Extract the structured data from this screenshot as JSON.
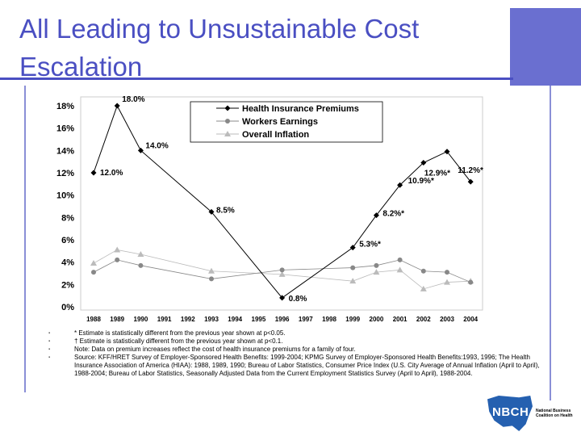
{
  "slide": {
    "title": "All Leading to Unsustainable Cost Escalation"
  },
  "chart_data": {
    "type": "line",
    "title": "",
    "xlabel": "",
    "ylabel": "",
    "categories": [
      "1988",
      "1989",
      "1990",
      "1991",
      "1992",
      "1993",
      "1994",
      "1995",
      "1996",
      "1997",
      "1998",
      "1999",
      "2000",
      "2001",
      "2002",
      "2003",
      "2004"
    ],
    "ylim": [
      0,
      18
    ],
    "y_ticks": [
      "0%",
      "2%",
      "4%",
      "6%",
      "8%",
      "10%",
      "12%",
      "14%",
      "16%",
      "18%"
    ],
    "legend_position": "top-right",
    "series": [
      {
        "name": "Health Insurance Premiums",
        "color": "#000000",
        "marker": "diamond",
        "points": [
          {
            "x": "1988",
            "y": 12.0,
            "label": "12.0%"
          },
          {
            "x": "1989",
            "y": 18.0,
            "label": "18.0%"
          },
          {
            "x": "1990",
            "y": 14.0,
            "label": "14.0%"
          },
          {
            "x": "1993",
            "y": 8.5,
            "label": "8.5%"
          },
          {
            "x": "1996",
            "y": 0.8,
            "label": "0.8%"
          },
          {
            "x": "1999",
            "y": 5.3,
            "label": "5.3%*"
          },
          {
            "x": "2000",
            "y": 8.2,
            "label": "8.2%*"
          },
          {
            "x": "2001",
            "y": 10.9,
            "label": "10.9%*"
          },
          {
            "x": "2002",
            "y": 12.9,
            "label": "12.9%*"
          },
          {
            "x": "2003",
            "y": 13.9,
            "label": ""
          },
          {
            "x": "2004",
            "y": 11.2,
            "label": "11.2%*"
          }
        ]
      },
      {
        "name": "Workers Earnings",
        "color": "#888888",
        "marker": "circle",
        "points": [
          {
            "x": "1988",
            "y": 3.1
          },
          {
            "x": "1989",
            "y": 4.2
          },
          {
            "x": "1990",
            "y": 3.7
          },
          {
            "x": "1993",
            "y": 2.5
          },
          {
            "x": "1996",
            "y": 3.3
          },
          {
            "x": "1999",
            "y": 3.5
          },
          {
            "x": "2000",
            "y": 3.7
          },
          {
            "x": "2001",
            "y": 4.2
          },
          {
            "x": "2002",
            "y": 3.2
          },
          {
            "x": "2003",
            "y": 3.1
          },
          {
            "x": "2004",
            "y": 2.2
          }
        ]
      },
      {
        "name": "Overall Inflation",
        "color": "#bbbbbb",
        "marker": "triangle",
        "points": [
          {
            "x": "1988",
            "y": 3.9
          },
          {
            "x": "1989",
            "y": 5.1
          },
          {
            "x": "1990",
            "y": 4.7
          },
          {
            "x": "1993",
            "y": 3.2
          },
          {
            "x": "1996",
            "y": 2.9
          },
          {
            "x": "1999",
            "y": 2.3
          },
          {
            "x": "2000",
            "y": 3.1
          },
          {
            "x": "2001",
            "y": 3.3
          },
          {
            "x": "2002",
            "y": 1.6
          },
          {
            "x": "2003",
            "y": 2.2
          },
          {
            "x": "2004",
            "y": 2.3
          }
        ]
      }
    ]
  },
  "notes": [
    "* Estimate is statistically different from the previous year shown at p<0.05.",
    "† Estimate is statistically different from the previous year shown at p<0.1.",
    "Note:  Data on premium increases reflect the cost of health insurance premiums for a family of four.",
    "Source:  KFF/HRET Survey of Employer-Sponsored Health Benefits: 1999-2004; KPMG Survey of Employer-Sponsored Health Benefits:1993, 1996; The Health Insurance Association of America (HIAA): 1988, 1989, 1990; Bureau of Labor Statistics, Consumer Price Index (U.S. City Average of Annual Inflation (April to April), 1988-2004; Bureau of Labor Statistics, Seasonally Adjusted Data from the Current Employment Statistics Survey (April to April), 1988-2004."
  ],
  "bullet_glyph": "▪",
  "logo": {
    "text": "NBCH",
    "caption": "National Business Coalition on Health",
    "color": "#2560b0"
  }
}
